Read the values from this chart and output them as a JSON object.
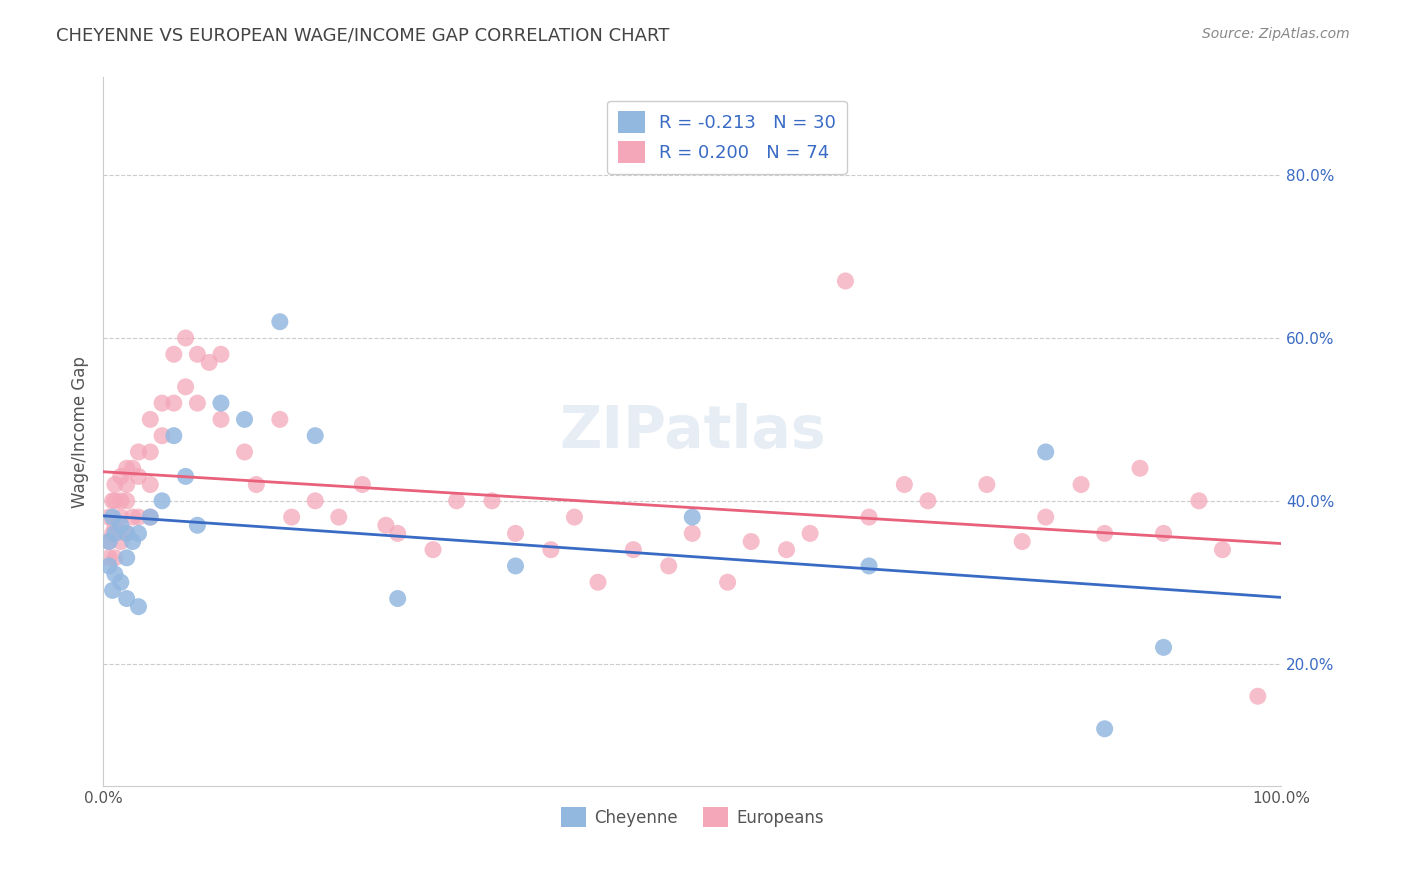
{
  "title": "CHEYENNE VS EUROPEAN WAGE/INCOME GAP CORRELATION CHART",
  "source": "Source: ZipAtlas.com",
  "ylabel": "Wage/Income Gap",
  "xlim": [
    0.0,
    1.0
  ],
  "ylim": [
    0.05,
    0.92
  ],
  "y_ticks": [
    0.2,
    0.4,
    0.6,
    0.8
  ],
  "y_tick_labels": [
    "20.0%",
    "40.0%",
    "60.0%",
    "80.0%"
  ],
  "cheyenne_R": -0.213,
  "cheyenne_N": 30,
  "europeans_R": 0.2,
  "europeans_N": 74,
  "cheyenne_color": "#93b8e0",
  "europeans_color": "#f4a7b9",
  "cheyenne_line_color": "#3a6bc4",
  "europeans_line_color": "#e8607a",
  "background_color": "#ffffff",
  "grid_color": "#cccccc",
  "cheyenne_x": [
    0.005,
    0.005,
    0.008,
    0.008,
    0.01,
    0.01,
    0.015,
    0.015,
    0.02,
    0.02,
    0.02,
    0.025,
    0.03,
    0.03,
    0.04,
    0.05,
    0.06,
    0.07,
    0.08,
    0.1,
    0.12,
    0.15,
    0.18,
    0.25,
    0.35,
    0.5,
    0.65,
    0.8,
    0.85,
    0.9
  ],
  "cheyenne_y": [
    0.35,
    0.32,
    0.38,
    0.29,
    0.36,
    0.31,
    0.37,
    0.3,
    0.36,
    0.33,
    0.28,
    0.35,
    0.36,
    0.27,
    0.38,
    0.4,
    0.48,
    0.43,
    0.37,
    0.52,
    0.5,
    0.62,
    0.48,
    0.28,
    0.32,
    0.38,
    0.32,
    0.46,
    0.12,
    0.22
  ],
  "europeans_x": [
    0.005,
    0.005,
    0.005,
    0.008,
    0.008,
    0.01,
    0.01,
    0.01,
    0.01,
    0.015,
    0.015,
    0.015,
    0.015,
    0.02,
    0.02,
    0.02,
    0.02,
    0.025,
    0.025,
    0.03,
    0.03,
    0.03,
    0.04,
    0.04,
    0.04,
    0.04,
    0.05,
    0.05,
    0.06,
    0.06,
    0.07,
    0.07,
    0.08,
    0.08,
    0.09,
    0.1,
    0.1,
    0.12,
    0.13,
    0.15,
    0.16,
    0.18,
    0.2,
    0.22,
    0.24,
    0.25,
    0.28,
    0.3,
    0.33,
    0.35,
    0.38,
    0.4,
    0.42,
    0.45,
    0.48,
    0.5,
    0.53,
    0.55,
    0.58,
    0.6,
    0.63,
    0.65,
    0.68,
    0.7,
    0.75,
    0.78,
    0.8,
    0.83,
    0.85,
    0.88,
    0.9,
    0.93,
    0.95,
    0.98
  ],
  "europeans_y": [
    0.38,
    0.35,
    0.33,
    0.4,
    0.36,
    0.42,
    0.4,
    0.37,
    0.33,
    0.43,
    0.4,
    0.38,
    0.35,
    0.44,
    0.42,
    0.4,
    0.36,
    0.44,
    0.38,
    0.46,
    0.43,
    0.38,
    0.5,
    0.46,
    0.42,
    0.38,
    0.52,
    0.48,
    0.58,
    0.52,
    0.6,
    0.54,
    0.58,
    0.52,
    0.57,
    0.58,
    0.5,
    0.46,
    0.42,
    0.5,
    0.38,
    0.4,
    0.38,
    0.42,
    0.37,
    0.36,
    0.34,
    0.4,
    0.4,
    0.36,
    0.34,
    0.38,
    0.3,
    0.34,
    0.32,
    0.36,
    0.3,
    0.35,
    0.34,
    0.36,
    0.67,
    0.38,
    0.42,
    0.4,
    0.42,
    0.35,
    0.38,
    0.42,
    0.36,
    0.44,
    0.36,
    0.4,
    0.34,
    0.16
  ]
}
